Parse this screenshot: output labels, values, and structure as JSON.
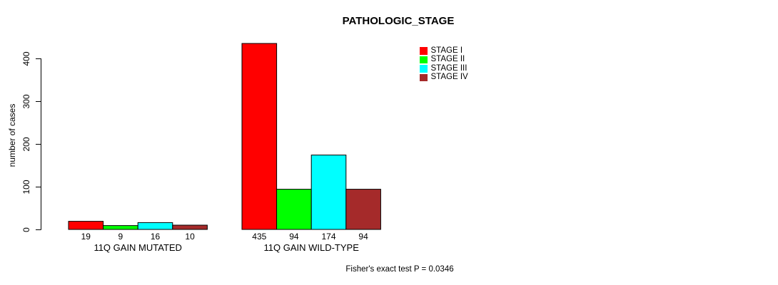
{
  "chart_data": {
    "type": "bar",
    "title": "PATHOLOGIC_STAGE",
    "ylabel": "number of cases",
    "xlabel": "",
    "ylim": [
      0,
      400
    ],
    "yticks": [
      0,
      100,
      200,
      300,
      400
    ],
    "grid": false,
    "legend_position": "top-right",
    "categories": [
      "11Q GAIN MUTATED",
      "11Q GAIN WILD-TYPE"
    ],
    "series": [
      {
        "name": "STAGE I",
        "color": "#FF0000",
        "values": [
          19,
          435
        ]
      },
      {
        "name": "STAGE II",
        "color": "#00FF00",
        "values": [
          9,
          94
        ]
      },
      {
        "name": "STAGE III",
        "color": "#00FFFF",
        "values": [
          16,
          174
        ]
      },
      {
        "name": "STAGE IV",
        "color": "#A52A2A",
        "values": [
          10,
          94
        ]
      }
    ],
    "bar_border_color": "#000000",
    "footnote": "Fisher's exact test P = 0.0346"
  }
}
